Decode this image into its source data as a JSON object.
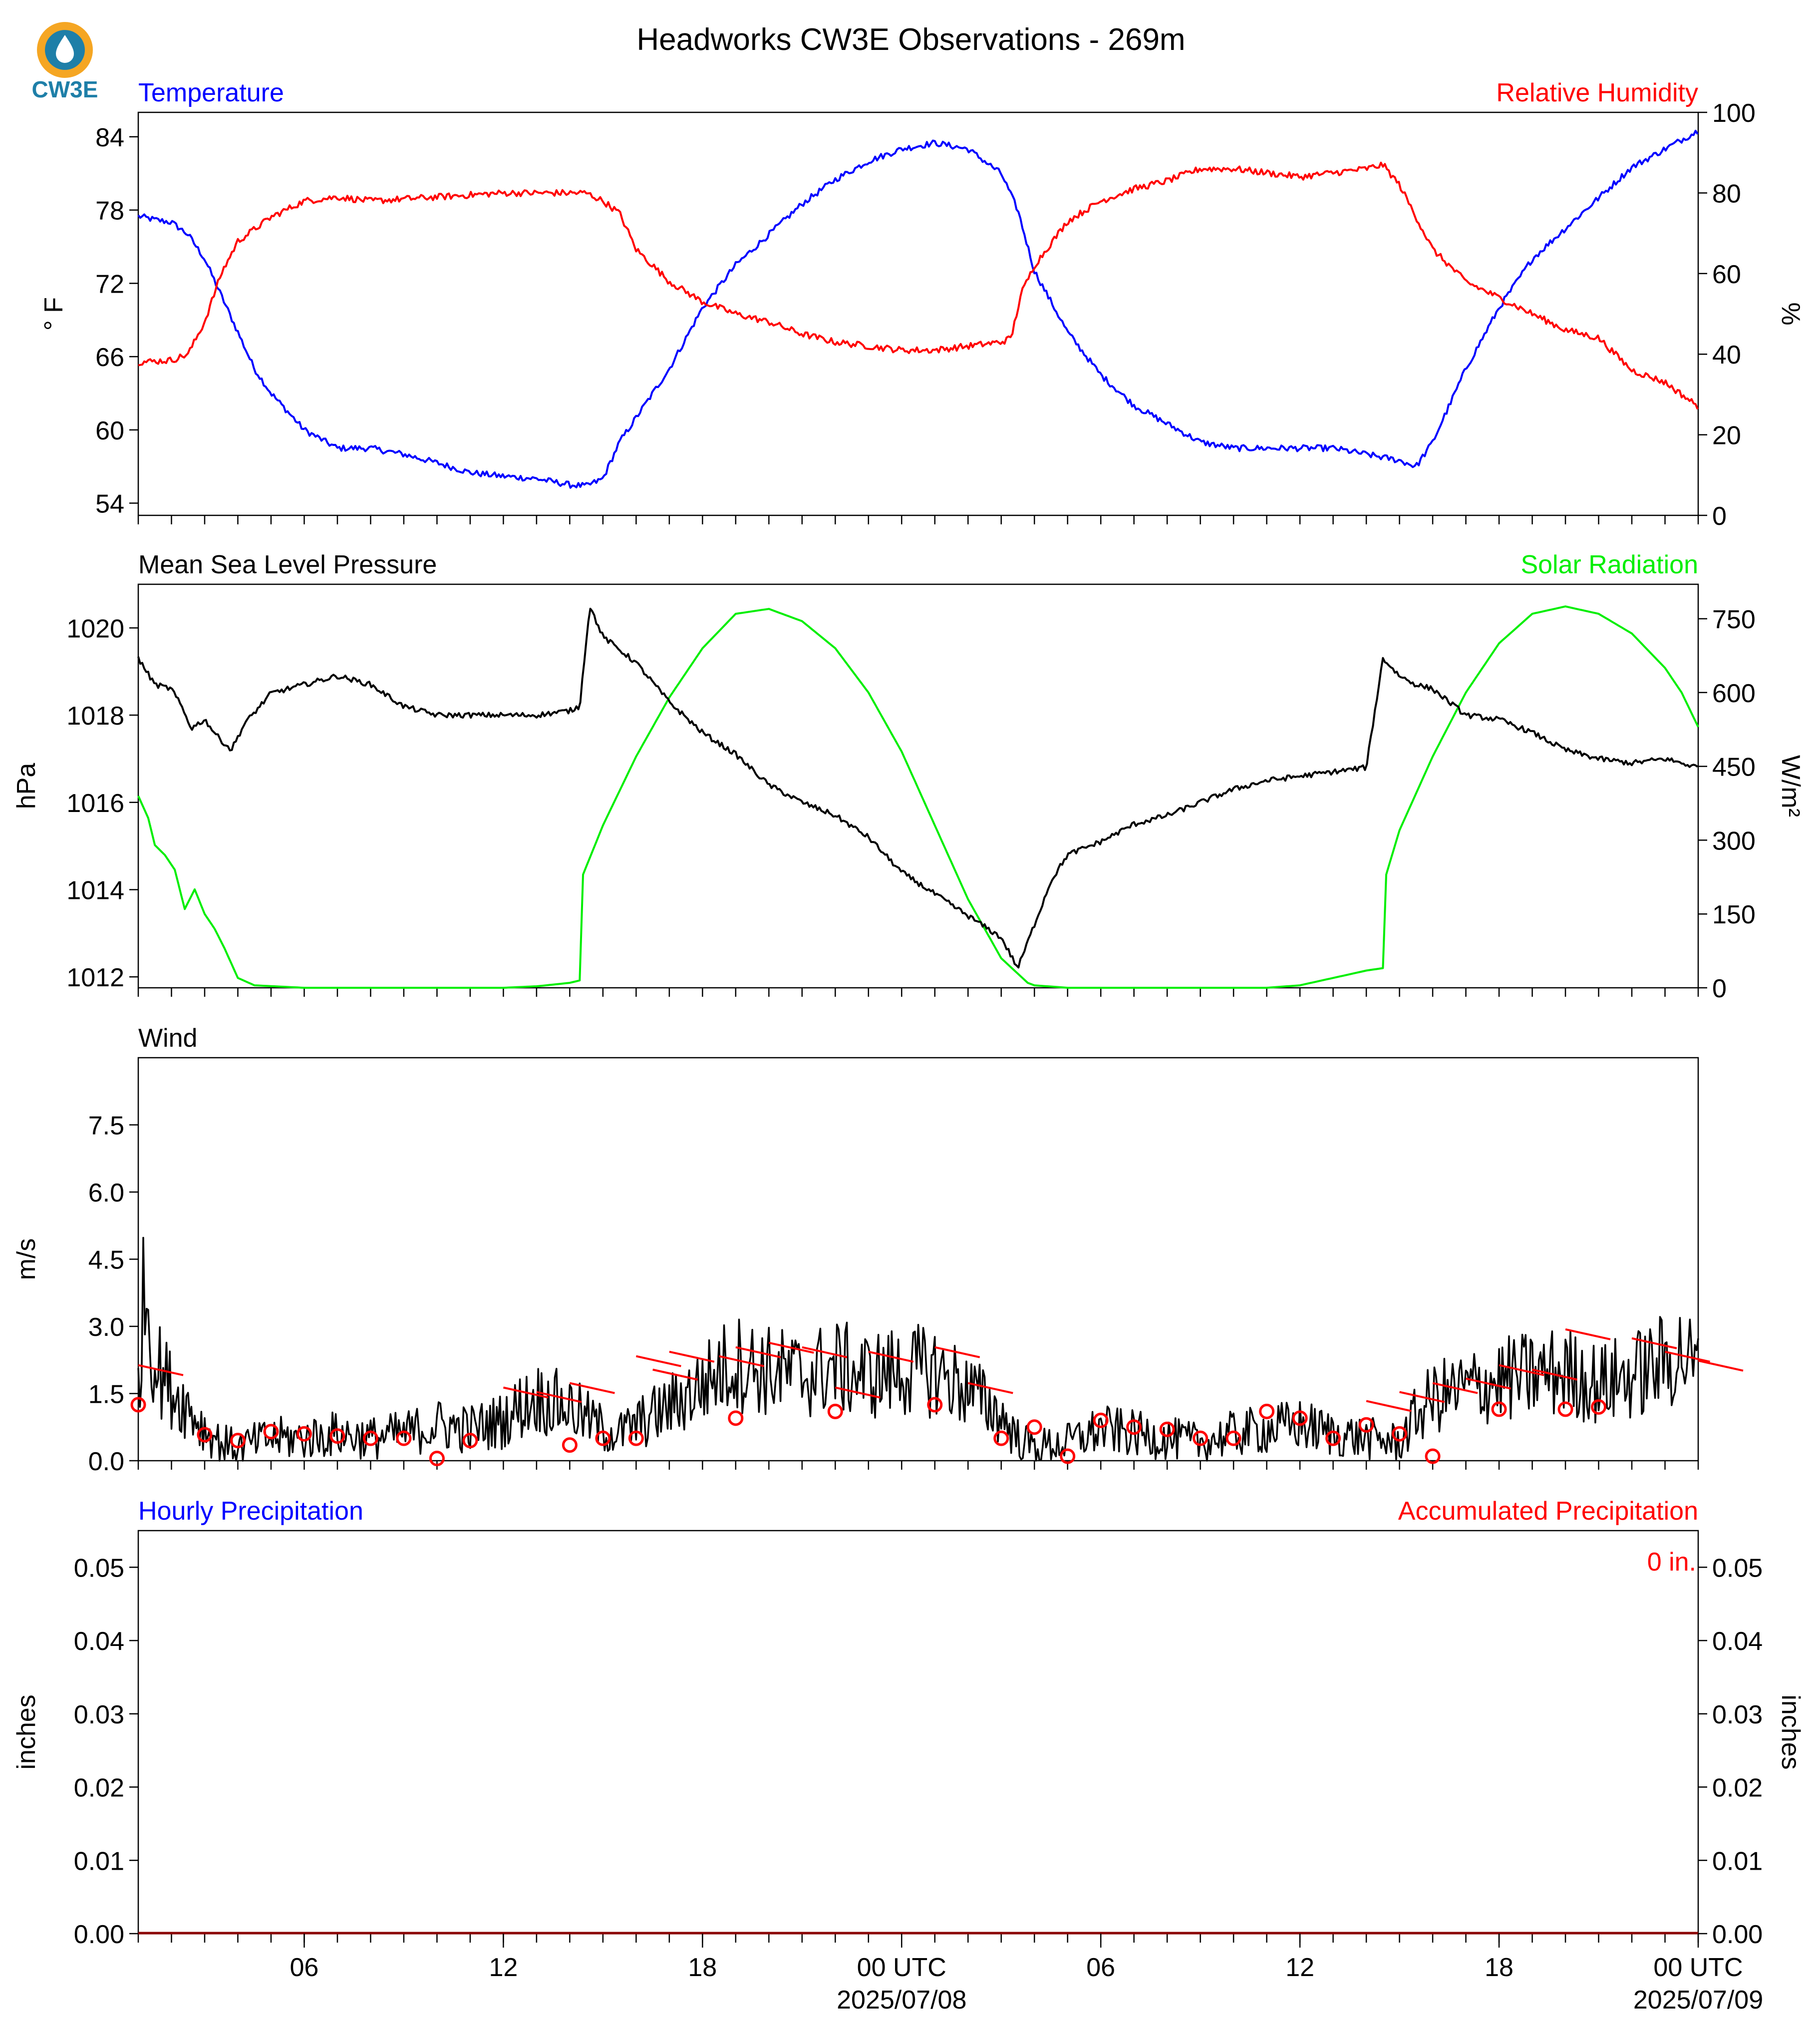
{
  "title": "Headworks CW3E Observations - 269m",
  "logo": {
    "text": "CW3E",
    "colors": [
      "#f5a623",
      "#1e7fa8"
    ],
    "icon": "cw3e-droplet-logo"
  },
  "colors": {
    "temperature": "#0000ff",
    "humidity": "#ff0000",
    "pressure": "#000000",
    "solar": "#00ee00",
    "wind": "#000000",
    "wind_marks": "#ff0000",
    "precip_hourly": "#0000ff",
    "precip_accum": "#ff0000"
  },
  "x_axis": {
    "range_hours": [
      0,
      47
    ],
    "ticks": [
      {
        "h": 5,
        "label": "06"
      },
      {
        "h": 11,
        "label": "12"
      },
      {
        "h": 17,
        "label": "18"
      },
      {
        "h": 23,
        "label": "00 UTC",
        "sublabel": "2025/07/08"
      },
      {
        "h": 29,
        "label": "06"
      },
      {
        "h": 35,
        "label": "12"
      },
      {
        "h": 41,
        "label": "18"
      },
      {
        "h": 47,
        "label": "00 UTC",
        "sublabel": "2025/07/09"
      }
    ]
  },
  "chart_data": [
    {
      "type": "line",
      "panel": "temperature-humidity",
      "left_title": "Temperature",
      "right_title": "Relative Humidity",
      "ylabel": "° F",
      "y2label": "%",
      "ylim": [
        53,
        86
      ],
      "y2lim": [
        0,
        100
      ],
      "yticks": [
        "84",
        "78",
        "72",
        "66",
        "60",
        "54"
      ],
      "y2ticks": [
        "100",
        "80",
        "60",
        "40",
        "20",
        "0"
      ],
      "series": [
        {
          "name": "Temperature",
          "axis": "left",
          "x": [
            0,
            0.5,
            1,
            1.5,
            2,
            2.5,
            3,
            3.5,
            4,
            4.5,
            5,
            6,
            7,
            8,
            9,
            10,
            11,
            12,
            13,
            13.5,
            14,
            14.5,
            15,
            16,
            17,
            18,
            19,
            20,
            21,
            22,
            23,
            24,
            25,
            26,
            26.5,
            27,
            28,
            29,
            30,
            31,
            32,
            33,
            34,
            35,
            36,
            37,
            38,
            38.5,
            39,
            40,
            41,
            42,
            43,
            44,
            45,
            46,
            47
          ],
          "y": [
            77.5,
            77.2,
            77,
            76,
            74,
            71,
            68,
            65,
            63,
            61.5,
            60,
            58.5,
            58.5,
            58,
            57.3,
            56.5,
            56.2,
            56,
            55.5,
            55.4,
            56,
            59,
            61,
            65,
            70,
            73.5,
            76,
            78.5,
            80.5,
            82,
            83,
            83.5,
            83,
            81,
            78,
            73,
            68,
            64.5,
            62,
            60.5,
            59,
            58.5,
            58.5,
            58.5,
            58.5,
            58,
            57.5,
            57,
            59,
            65,
            70,
            74,
            76.5,
            79,
            81.5,
            83,
            84.5
          ]
        },
        {
          "name": "Relative Humidity",
          "axis": "right",
          "x": [
            0,
            1,
            1.5,
            2,
            2.5,
            3,
            4,
            5,
            6,
            7,
            8,
            9,
            10,
            11,
            12,
            13,
            13.5,
            14,
            14.5,
            15,
            16,
            17,
            18,
            19,
            20,
            21,
            22,
            23,
            24,
            25,
            26,
            26.3,
            26.6,
            27,
            28,
            29,
            30,
            31,
            32,
            33,
            34,
            35,
            36,
            37,
            37.5,
            38,
            39,
            40,
            41,
            42,
            43,
            44,
            45,
            46,
            47
          ],
          "y": [
            38,
            38.5,
            40,
            48,
            60,
            68,
            74,
            78,
            79,
            78,
            78.5,
            79,
            79.5,
            80,
            80,
            80,
            80,
            78,
            75,
            66,
            58,
            53,
            50,
            48,
            45,
            43,
            42,
            41,
            41,
            42,
            43,
            44,
            55,
            62,
            73,
            78,
            81,
            83,
            86,
            86,
            85,
            84,
            85,
            86,
            87,
            82,
            66,
            58,
            54,
            50,
            46,
            44,
            36,
            33,
            27
          ]
        }
      ]
    },
    {
      "type": "line",
      "panel": "pressure-solar",
      "left_title": "Mean Sea Level Pressure",
      "right_title": "Solar Radiation",
      "ylabel": "hPa",
      "y2label": "W/m²",
      "ylim": [
        1011.75,
        1021
      ],
      "y2lim": [
        0,
        820
      ],
      "yticks": [
        "1020",
        "1018",
        "1016",
        "1014",
        "1012"
      ],
      "y2ticks": [
        "750",
        "600",
        "450",
        "300",
        "150",
        "0"
      ],
      "series": [
        {
          "name": "Mean Sea Level Pressure",
          "axis": "left",
          "x": [
            0,
            0.5,
            1,
            1.3,
            1.6,
            2,
            2.4,
            2.8,
            3.2,
            4,
            5,
            6,
            7,
            8,
            9,
            10,
            11,
            12,
            13,
            13.3,
            13.6,
            14,
            14.5,
            15,
            16,
            17,
            18,
            19,
            20,
            21,
            22,
            23,
            24,
            25,
            26,
            26.5,
            27,
            27.5,
            28,
            29,
            30,
            31,
            32,
            33,
            34,
            35,
            36,
            37,
            37.5,
            38,
            38.5,
            39,
            40,
            41,
            42,
            43,
            44,
            45,
            46,
            47
          ],
          "y": [
            1019.3,
            1018.7,
            1018.6,
            1018.2,
            1017.7,
            1017.9,
            1017.5,
            1017.2,
            1017.8,
            1018.5,
            1018.7,
            1018.9,
            1018.7,
            1018.2,
            1018,
            1018,
            1018,
            1018,
            1018.1,
            1018.2,
            1020.5,
            1019.8,
            1019.5,
            1019.2,
            1018.3,
            1017.6,
            1017.1,
            1016.4,
            1016,
            1015.7,
            1015.2,
            1014.4,
            1013.9,
            1013.4,
            1012.9,
            1012.2,
            1013.2,
            1014.2,
            1014.8,
            1015.1,
            1015.5,
            1015.7,
            1016,
            1016.3,
            1016.5,
            1016.6,
            1016.7,
            1016.8,
            1019.3,
            1018.9,
            1018.7,
            1018.6,
            1018,
            1017.9,
            1017.6,
            1017.2,
            1017,
            1016.9,
            1017,
            1016.8
          ]
        },
        {
          "name": "Solar Radiation",
          "axis": "right",
          "x": [
            0,
            0.3,
            0.5,
            0.8,
            1.1,
            1.4,
            1.7,
            2,
            2.3,
            2.6,
            2.8,
            3,
            3.5,
            5,
            8,
            11,
            12,
            13,
            13.3,
            13.4,
            14,
            15,
            16,
            17,
            18,
            19,
            20,
            21,
            22,
            23,
            24,
            25,
            26,
            26.8,
            27,
            28,
            30,
            34,
            35,
            37,
            37.5,
            37.6,
            38,
            39,
            40,
            41,
            42,
            43,
            44,
            45,
            46,
            46.5,
            47
          ],
          "y": [
            390,
            345,
            290,
            270,
            240,
            160,
            200,
            150,
            120,
            80,
            50,
            20,
            5,
            0,
            0,
            0,
            3,
            10,
            15,
            230,
            330,
            470,
            590,
            690,
            760,
            770,
            745,
            690,
            600,
            480,
            330,
            180,
            60,
            10,
            5,
            0,
            0,
            0,
            5,
            35,
            40,
            230,
            320,
            470,
            600,
            700,
            760,
            775,
            760,
            720,
            650,
            600,
            530
          ]
        }
      ]
    },
    {
      "type": "line",
      "panel": "wind",
      "left_title": "Wind",
      "ylabel": "m/s",
      "ylim": [
        0,
        9
      ],
      "yticks": [
        "7.5",
        "6.0",
        "4.5",
        "3.0",
        "1.5",
        "0.0"
      ],
      "series": [
        {
          "name": "Wind",
          "x": [
            0,
            0.2,
            0.5,
            1,
            1.5,
            2,
            2.5,
            3,
            4,
            5,
            6,
            7,
            8,
            9,
            10,
            11,
            11.5,
            12,
            13,
            14,
            14.5,
            15,
            16,
            17,
            17.5,
            18,
            19,
            20,
            21,
            22,
            23,
            24,
            25,
            26,
            26.5,
            27,
            28,
            29,
            30,
            31,
            32,
            33,
            34,
            35,
            36,
            37,
            38,
            38.5,
            39,
            40,
            41,
            42,
            43,
            44,
            45,
            46,
            46.5,
            47
          ],
          "y": [
            1.8,
            4,
            2.2,
            1.6,
            1.2,
            0.7,
            0.4,
            0.3,
            0.5,
            0.5,
            0.6,
            0.5,
            0.6,
            0.8,
            0.7,
            0.9,
            1.2,
            1.4,
            1.2,
            0.7,
            0.6,
            0.8,
            1.2,
            1.7,
            2.0,
            2.2,
            2.0,
            1.9,
            2.1,
            1.9,
            2.0,
            2.0,
            1.6,
            1.0,
            0.5,
            0.3,
            0.4,
            0.7,
            0.6,
            0.5,
            0.4,
            0.6,
            0.7,
            0.8,
            0.6,
            0.5,
            0.4,
            1.0,
            1.4,
            1.6,
            1.8,
            1.9,
            2.0,
            1.7,
            1.9,
            2.2,
            2.4,
            2.0
          ]
        },
        {
          "name": "Gust markers",
          "x": [
            0,
            2,
            3,
            4,
            5,
            6,
            7,
            8,
            9,
            10,
            13,
            14,
            15,
            18,
            21,
            24,
            26,
            27,
            28,
            29,
            30,
            31,
            32,
            33,
            34,
            35,
            36,
            37,
            38,
            39,
            41,
            43,
            44
          ],
          "y": [
            1.25,
            0.58,
            0.45,
            0.65,
            0.6,
            0.55,
            0.5,
            0.5,
            0.05,
            0.45,
            0.35,
            0.5,
            0.5,
            0.95,
            1.1,
            1.25,
            0.5,
            0.75,
            0.1,
            0.9,
            0.75,
            0.7,
            0.5,
            0.5,
            1.1,
            0.95,
            0.5,
            0.8,
            0.6,
            0.1,
            1.15,
            1.15,
            1.2
          ]
        },
        {
          "name": "Wind barbs",
          "x": [
            0,
            11,
            12,
            13,
            15,
            15.5,
            16,
            17.5,
            18,
            19,
            20,
            21,
            22,
            24,
            25,
            37,
            38,
            39,
            40,
            41,
            42,
            43,
            45,
            46,
            47
          ],
          "y": [
            2.0,
            1.5,
            1.4,
            1.6,
            2.2,
            1.9,
            2.3,
            2.2,
            2.4,
            2.5,
            2.4,
            1.5,
            2.3,
            2.4,
            1.6,
            1.2,
            1.4,
            1.6,
            1.7,
            2.0,
            1.9,
            2.8,
            2.6,
            2.3,
            2.1
          ]
        }
      ]
    },
    {
      "type": "line",
      "panel": "precipitation",
      "left_title": "Hourly Precipitation",
      "right_title": "Accumulated Precipitation",
      "ylabel": "inches",
      "y2label": "inches",
      "ylim": [
        0,
        0.055
      ],
      "y2lim": [
        0,
        0.055
      ],
      "yticks": [
        "0.05",
        "0.04",
        "0.03",
        "0.02",
        "0.01",
        "0.00"
      ],
      "y2ticks": [
        "0.05",
        "0.04",
        "0.03",
        "0.02",
        "0.01",
        "0.00"
      ],
      "accum_label": "0 in.",
      "series": [
        {
          "name": "Accumulated Precipitation",
          "x": [
            0,
            47
          ],
          "y": [
            0,
            0
          ]
        }
      ]
    }
  ]
}
